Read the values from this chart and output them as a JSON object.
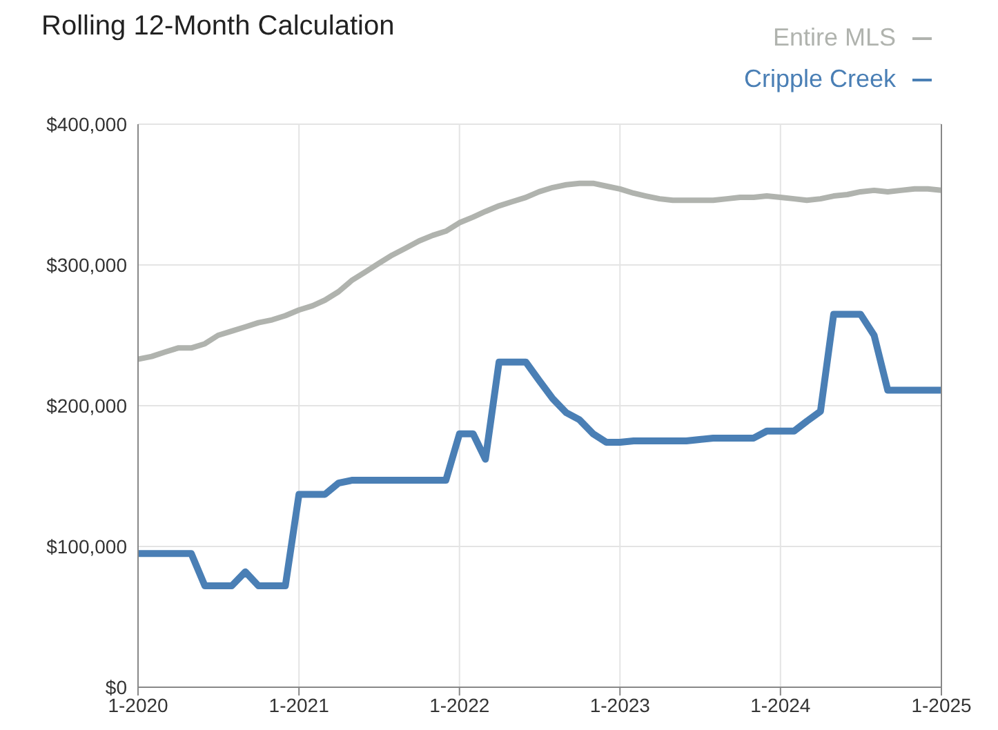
{
  "chart_data": {
    "type": "line",
    "title": "Rolling 12-Month Calculation",
    "legend": "top right",
    "grid": true,
    "marker": "none",
    "line_style": "solid",
    "x": [
      "2020-01",
      "2020-02",
      "2020-03",
      "2020-04",
      "2020-05",
      "2020-06",
      "2020-07",
      "2020-08",
      "2020-09",
      "2020-10",
      "2020-11",
      "2020-12",
      "2021-01",
      "2021-02",
      "2021-03",
      "2021-04",
      "2021-05",
      "2021-06",
      "2021-07",
      "2021-08",
      "2021-09",
      "2021-10",
      "2021-11",
      "2021-12",
      "2022-01",
      "2022-02",
      "2022-03",
      "2022-04",
      "2022-05",
      "2022-06",
      "2022-07",
      "2022-08",
      "2022-09",
      "2022-10",
      "2022-11",
      "2022-12",
      "2023-01",
      "2023-02",
      "2023-03",
      "2023-04",
      "2023-05",
      "2023-06",
      "2023-07",
      "2023-08",
      "2023-09",
      "2023-10",
      "2023-11",
      "2023-12",
      "2024-01",
      "2024-02",
      "2024-03",
      "2024-04",
      "2024-05",
      "2024-06",
      "2024-07",
      "2024-08",
      "2024-09",
      "2024-10",
      "2024-11",
      "2024-12",
      "2025-01"
    ],
    "series": [
      {
        "name": "Entire MLS",
        "color": "#b0b3ae",
        "values": [
          233000,
          235000,
          238000,
          241000,
          241000,
          244000,
          250000,
          253000,
          256000,
          259000,
          261000,
          264000,
          268000,
          271000,
          275000,
          281000,
          289000,
          295000,
          301000,
          307000,
          312000,
          317000,
          321000,
          324000,
          330000,
          334000,
          338000,
          342000,
          345000,
          348000,
          352000,
          355000,
          357000,
          358000,
          358000,
          356000,
          354000,
          351000,
          349000,
          347000,
          346000,
          346000,
          346000,
          346000,
          347000,
          348000,
          348000,
          349000,
          348000,
          347000,
          346000,
          347000,
          349000,
          350000,
          352000,
          353000,
          352000,
          353000,
          354000,
          354000,
          353000
        ]
      },
      {
        "name": "Cripple Creek",
        "color": "#4a7fb5",
        "values": [
          95000,
          95000,
          95000,
          95000,
          95000,
          72000,
          72000,
          72000,
          82000,
          72000,
          72000,
          72000,
          137000,
          137000,
          137000,
          145000,
          147000,
          147000,
          147000,
          147000,
          147000,
          147000,
          147000,
          147000,
          180000,
          180000,
          162000,
          231000,
          231000,
          231000,
          218000,
          205000,
          195000,
          190000,
          180000,
          174000,
          174000,
          175000,
          175000,
          175000,
          175000,
          175000,
          176000,
          177000,
          177000,
          177000,
          177000,
          182000,
          182000,
          182000,
          189000,
          196000,
          265000,
          265000,
          265000,
          250000,
          211000,
          211000,
          211000,
          211000,
          211000
        ]
      }
    ],
    "xlim": [
      "2020-01",
      "2025-01"
    ],
    "xticks": [
      {
        "value": "2020-01",
        "label": "1-2020"
      },
      {
        "value": "2021-01",
        "label": "1-2021"
      },
      {
        "value": "2022-01",
        "label": "1-2022"
      },
      {
        "value": "2023-01",
        "label": "1-2023"
      },
      {
        "value": "2024-01",
        "label": "1-2024"
      },
      {
        "value": "2025-01",
        "label": "1-2025"
      }
    ],
    "ylim": [
      0,
      400000
    ],
    "yticks": [
      {
        "value": 0,
        "label": "$0"
      },
      {
        "value": 100000,
        "label": "$100,000"
      },
      {
        "value": 200000,
        "label": "$200,000"
      },
      {
        "value": 300000,
        "label": "$300,000"
      },
      {
        "value": 400000,
        "label": "$400,000"
      }
    ]
  }
}
